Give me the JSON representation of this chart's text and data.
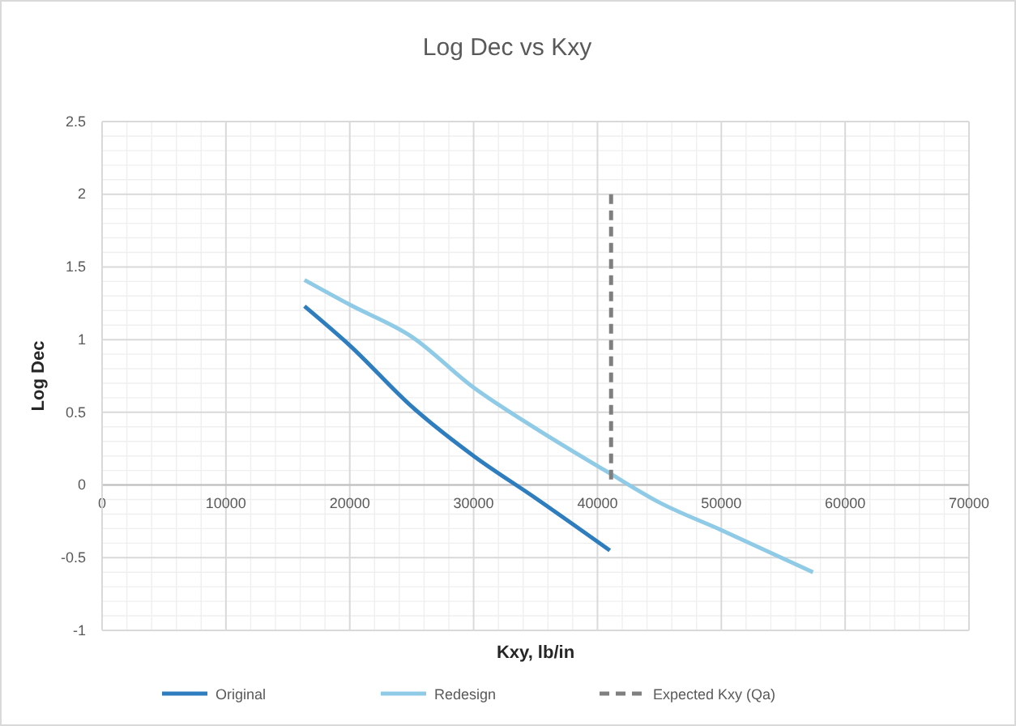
{
  "chart_data": {
    "type": "line",
    "title": "Log Dec vs Kxy",
    "xlabel": "Kxy, lb/in",
    "ylabel": "Log Dec",
    "xlim": [
      0,
      70000
    ],
    "xticks": [
      0,
      10000,
      20000,
      30000,
      40000,
      50000,
      60000,
      70000
    ],
    "ylim": [
      -1,
      2.5
    ],
    "yticks": [
      -1,
      -0.5,
      0,
      0.5,
      1,
      1.5,
      2,
      2.5
    ],
    "grid": true,
    "legend": "bottom",
    "series": [
      {
        "name": "Original",
        "color": "#2e7dbf",
        "x": [
          16340,
          20000,
          25000,
          30000,
          35000,
          41000
        ],
        "values": [
          1.23,
          0.96,
          0.54,
          0.2,
          -0.09,
          -0.45
        ]
      },
      {
        "name": "Redesign",
        "color": "#8fcbe6",
        "x": [
          16340,
          20000,
          25000,
          30000,
          35000,
          41000,
          45000,
          50000,
          57400
        ],
        "values": [
          1.41,
          1.24,
          1.02,
          0.67,
          0.39,
          0.08,
          -0.12,
          -0.31,
          -0.6
        ]
      },
      {
        "name": "Expected Kxy (Qa)",
        "color": "#7f7f7f",
        "line_style": "dashed",
        "x": [
          41100,
          41100
        ],
        "values": [
          2,
          0
        ]
      }
    ]
  }
}
